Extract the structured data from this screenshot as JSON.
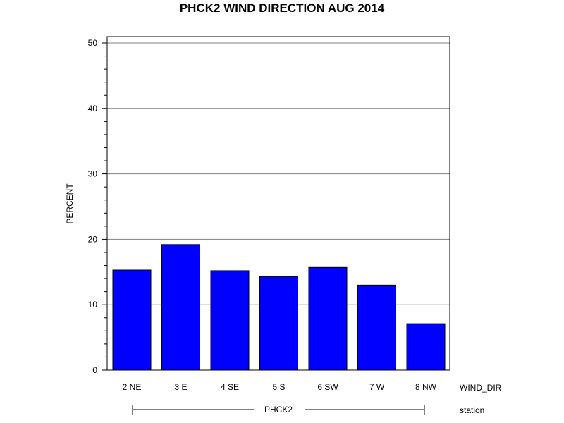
{
  "chart_data": {
    "type": "bar",
    "title": "PHCK2 WIND DIRECTION AUG 2014",
    "ylabel": "PERCENT",
    "xlabel": "WIND_DIR",
    "group_axis_label": "station",
    "group_label": "PHCK2",
    "categories": [
      "2 NE",
      "3 E",
      "4 SE",
      "5 S",
      "6 SW",
      "7 W",
      "8 NW"
    ],
    "values": [
      15.3,
      19.2,
      15.2,
      14.3,
      15.7,
      13.0,
      7.1
    ],
    "ylim": [
      0,
      50
    ],
    "yticks": [
      "0",
      "10",
      "20",
      "30",
      "40",
      "50"
    ],
    "grid": true,
    "bar_color": "#0000ff"
  }
}
